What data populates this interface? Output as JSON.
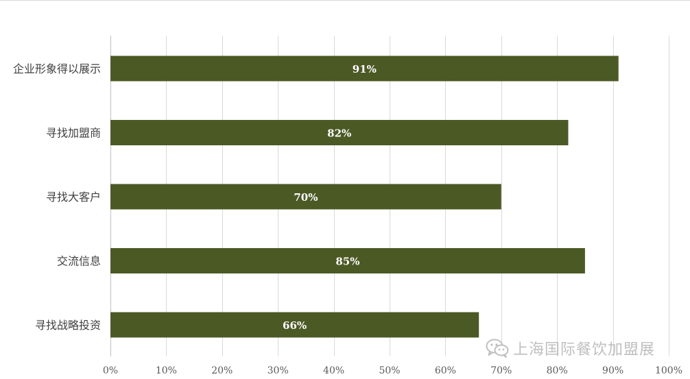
{
  "chart_data": {
    "type": "bar",
    "orientation": "horizontal",
    "categories": [
      "企业形象得以展示",
      "寻找加盟商",
      "寻找大客户",
      "交流信息",
      "寻找战略投资"
    ],
    "values": [
      91,
      82,
      70,
      85,
      66
    ],
    "data_labels": [
      "91%",
      "82%",
      "70%",
      "85%",
      "66%"
    ],
    "xlim": [
      0,
      100
    ],
    "x_ticks": [
      "0%",
      "10%",
      "20%",
      "30%",
      "40%",
      "50%",
      "60%",
      "70%",
      "80%",
      "90%",
      "100%"
    ],
    "grid": "vertical",
    "title": "",
    "xlabel": "",
    "ylabel": "",
    "bar_color": "#4b5a24"
  },
  "watermark": {
    "icon": "wechat-icon",
    "text": "上海国际餐饮加盟展"
  }
}
